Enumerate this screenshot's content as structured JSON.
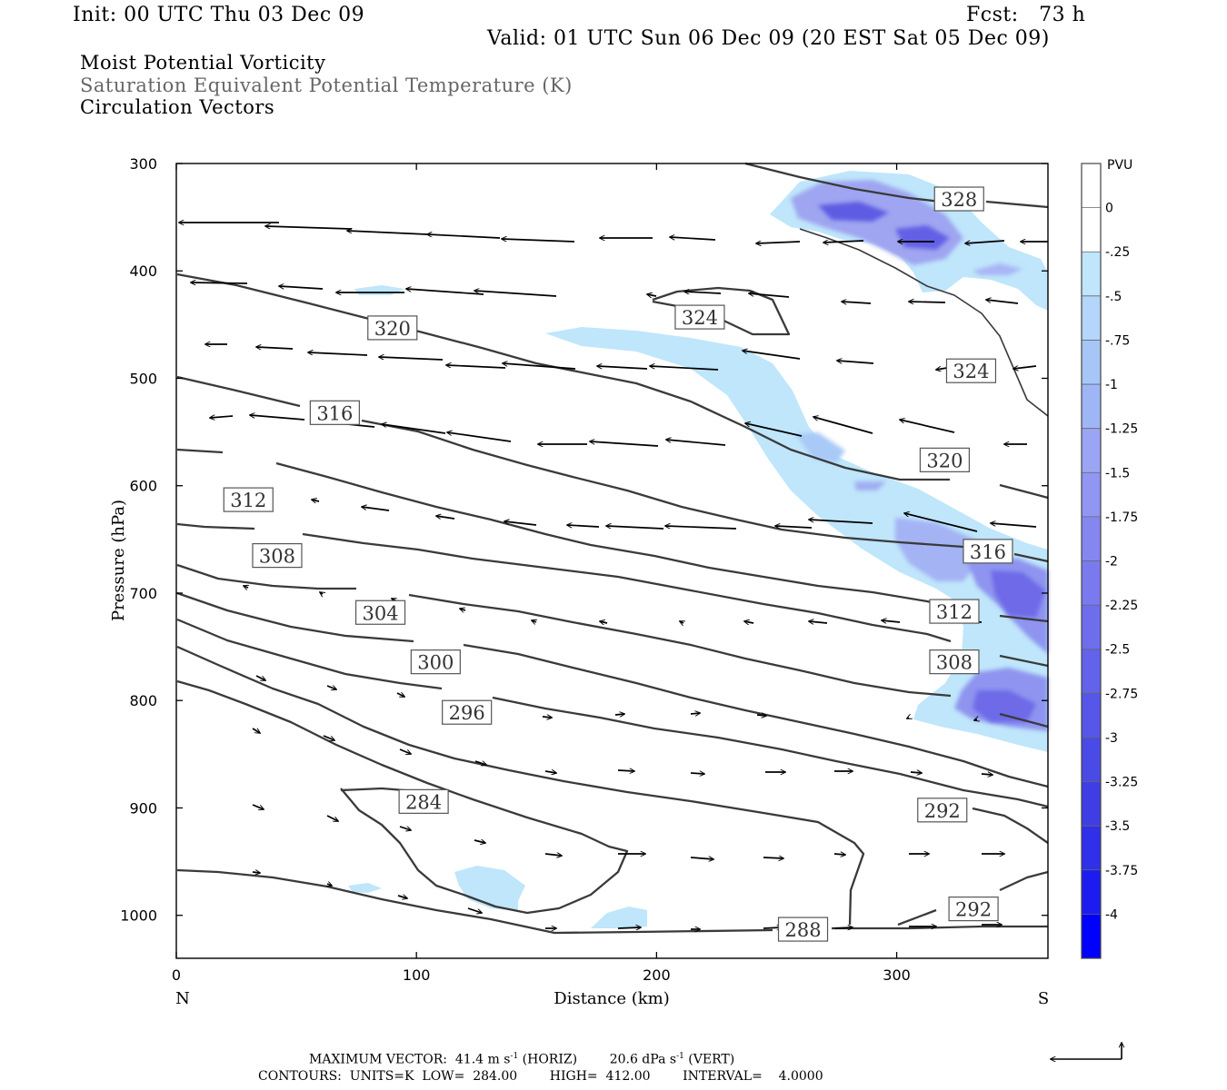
{
  "header": {
    "init": "Init: 00 UTC Thu 03 Dec 09",
    "fcst": "Fcst:   73 h",
    "valid": "Valid: 01 UTC Sun 06 Dec 09 (20 EST Sat 05 Dec 09)"
  },
  "fields": {
    "field1": "Moist Potential Vorticity",
    "field2": "Saturation Equivalent Potential Temperature (K)",
    "field3": "Circulation Vectors"
  },
  "colors": {
    "contour": "#3a3a3a",
    "pv_light": "#bfe6fb",
    "pv_mid": "#9fa5f0",
    "pv_dark": "#6d6ae8",
    "pv_darkest": "#5452e2"
  },
  "chart_data": {
    "type": "cross-section",
    "xlabel": "Distance (km)",
    "ylabel": "Pressure (hPa)",
    "xlim": [
      0,
      363
    ],
    "ylim": [
      1040,
      300
    ],
    "x_ticks": [
      "0",
      "100",
      "200",
      "300"
    ],
    "y_ticks": [
      "300",
      "400",
      "500",
      "600",
      "700",
      "800",
      "900",
      "1000"
    ],
    "x_end_labels": [
      "N",
      "S"
    ],
    "colorbar": {
      "units": "PVU",
      "labels": [
        "0",
        "-.25",
        "-.5",
        "-.75",
        "-1",
        "-1.25",
        "-1.5",
        "-1.75",
        "-2",
        "-2.25",
        "-2.5",
        "-2.75",
        "-3",
        "-3.25",
        "-3.5",
        "-3.75",
        "-4"
      ],
      "colors": [
        "#ffffff",
        "#ffffff",
        "#bfe6fb",
        "#b3d6fa",
        "#a7c6f8",
        "#9fb6f6",
        "#9aa6f4",
        "#9096f2",
        "#8686f0",
        "#7a7aee",
        "#6e6eec",
        "#6262ea",
        "#5656e8",
        "#4a4ae6",
        "#3e3ee4",
        "#3030e8",
        "#1c1cf0",
        "#0000ff"
      ]
    },
    "contour_labels": [
      {
        "text": "328",
        "x": 326,
        "p": 333
      },
      {
        "text": "324",
        "x": 218,
        "p": 443
      },
      {
        "text": "324",
        "x": 331,
        "p": 493
      },
      {
        "text": "320",
        "x": 90,
        "p": 453
      },
      {
        "text": "320",
        "x": 320,
        "p": 576
      },
      {
        "text": "316",
        "x": 66,
        "p": 532
      },
      {
        "text": "316",
        "x": 338,
        "p": 661
      },
      {
        "text": "312",
        "x": 30,
        "p": 613
      },
      {
        "text": "312",
        "x": 324,
        "p": 717
      },
      {
        "text": "308",
        "x": 42,
        "p": 665
      },
      {
        "text": "308",
        "x": 324,
        "p": 764
      },
      {
        "text": "304",
        "x": 85,
        "p": 718
      },
      {
        "text": "300",
        "x": 108,
        "p": 764
      },
      {
        "text": "296",
        "x": 121,
        "p": 811
      },
      {
        "text": "292",
        "x": 319,
        "p": 902
      },
      {
        "text": "292",
        "x": 332,
        "p": 994
      },
      {
        "text": "288",
        "x": 261,
        "p": 1013
      },
      {
        "text": "284",
        "x": 103,
        "p": 894
      }
    ],
    "isentropes_K": [
      284,
      288,
      292,
      296,
      300,
      304,
      308,
      312,
      316,
      320,
      324,
      328
    ],
    "max_vector": "MAXIMUM VECTOR:  41.4 m s",
    "max_vector_horiz": "(HORIZ)",
    "max_vector_vert": "20.6 dPa s",
    "max_vector_vert_suffix": "(VERT)",
    "exponent": "-1",
    "contours_info": "CONTOURS:  UNITS=K  LOW=  284.00        HIGH=  412.00        INTERVAL=    4.0000"
  }
}
